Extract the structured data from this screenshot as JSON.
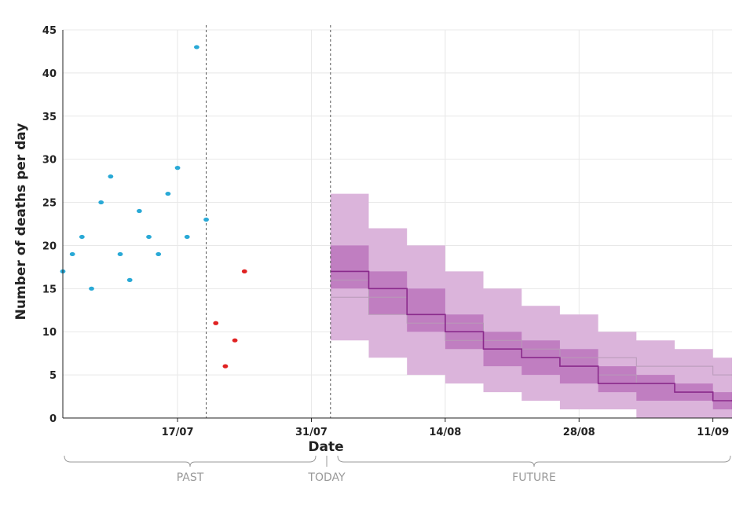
{
  "chart_data": {
    "type": "scatter",
    "xlabel": "Date",
    "ylabel": "Number of deaths per day",
    "ylim": [
      0,
      45
    ],
    "yticks": [
      0,
      5,
      10,
      15,
      20,
      25,
      30,
      35,
      40,
      45
    ],
    "xlim": [
      "2020-07-05",
      "2020-09-13"
    ],
    "xticks": [
      {
        "date": "2020-07-17",
        "label": "17/07"
      },
      {
        "date": "2020-07-31",
        "label": "31/07"
      },
      {
        "date": "2020-08-14",
        "label": "14/08"
      },
      {
        "date": "2020-08-28",
        "label": "28/08"
      },
      {
        "date": "2020-09-11",
        "label": "11/09"
      }
    ],
    "grid": true,
    "reference_lines": [
      {
        "date": "2020-07-20",
        "style": "dotted"
      },
      {
        "date": "2020-08-02",
        "style": "dotted"
      }
    ],
    "observed_points": [
      {
        "date": "2020-07-05",
        "value": 17
      },
      {
        "date": "2020-07-06",
        "value": 19
      },
      {
        "date": "2020-07-07",
        "value": 21
      },
      {
        "date": "2020-07-08",
        "value": 15
      },
      {
        "date": "2020-07-09",
        "value": 25
      },
      {
        "date": "2020-07-10",
        "value": 28
      },
      {
        "date": "2020-07-11",
        "value": 19
      },
      {
        "date": "2020-07-12",
        "value": 16
      },
      {
        "date": "2020-07-13",
        "value": 24
      },
      {
        "date": "2020-07-14",
        "value": 21
      },
      {
        "date": "2020-07-15",
        "value": 19
      },
      {
        "date": "2020-07-16",
        "value": 26
      },
      {
        "date": "2020-07-17",
        "value": 29
      },
      {
        "date": "2020-07-18",
        "value": 21
      },
      {
        "date": "2020-07-19",
        "value": 43
      },
      {
        "date": "2020-07-20",
        "value": 23
      }
    ],
    "recent_points": [
      {
        "date": "2020-07-21",
        "value": 11
      },
      {
        "date": "2020-07-22",
        "value": 6
      },
      {
        "date": "2020-07-23",
        "value": 9
      },
      {
        "date": "2020-07-24",
        "value": 17
      }
    ],
    "forecast": {
      "dates": [
        "2020-08-02",
        "2020-08-06",
        "2020-08-10",
        "2020-08-14",
        "2020-08-18",
        "2020-08-22",
        "2020-08-26",
        "2020-08-30",
        "2020-09-03",
        "2020-09-07",
        "2020-09-11",
        "2020-09-13"
      ],
      "median": [
        17,
        15,
        12,
        10,
        8,
        7,
        6,
        4,
        4,
        3,
        2,
        2
      ],
      "inner_low": [
        15,
        12,
        10,
        8,
        6,
        5,
        4,
        3,
        2,
        2,
        1,
        1
      ],
      "inner_high": [
        20,
        17,
        15,
        12,
        10,
        9,
        8,
        6,
        5,
        4,
        3,
        3
      ],
      "outer_low": [
        9,
        7,
        5,
        4,
        3,
        2,
        1,
        1,
        0,
        0,
        0,
        0
      ],
      "outer_high": [
        26,
        22,
        20,
        17,
        15,
        13,
        12,
        10,
        9,
        8,
        7,
        7
      ],
      "alt_path_1": [
        14,
        12,
        11,
        9,
        8,
        8,
        7,
        7,
        6,
        6,
        5,
        5
      ],
      "alt_path_2": [
        16,
        14,
        12,
        11,
        9,
        7,
        6,
        5,
        4,
        3,
        2,
        2
      ]
    },
    "colors": {
      "observed": "#29a9d6",
      "recent": "#e02222",
      "forecast_outer": "#dbb4db",
      "forecast_inner": "#c07ec1",
      "forecast_line": "#8a2a8c",
      "alt_line": "#b79ab8",
      "grid": "#e8e8e8",
      "axis": "#222222",
      "brace": "#999999"
    },
    "period_labels": {
      "past": "PAST",
      "today": "TODAY",
      "future": "FUTURE"
    }
  }
}
